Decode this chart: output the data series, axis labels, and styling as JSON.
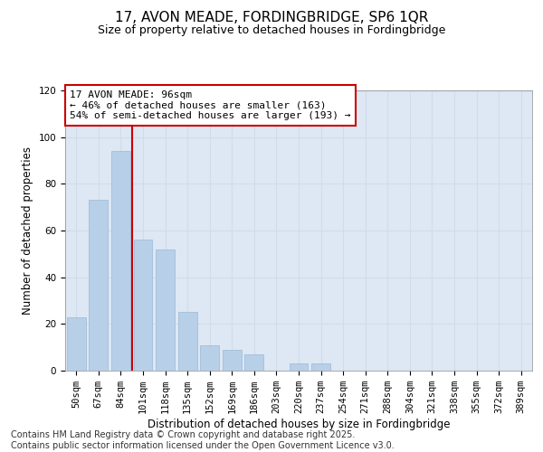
{
  "title": "17, AVON MEADE, FORDINGBRIDGE, SP6 1QR",
  "subtitle": "Size of property relative to detached houses in Fordingbridge",
  "xlabel": "Distribution of detached houses by size in Fordingbridge",
  "ylabel": "Number of detached properties",
  "categories": [
    "50sqm",
    "67sqm",
    "84sqm",
    "101sqm",
    "118sqm",
    "135sqm",
    "152sqm",
    "169sqm",
    "186sqm",
    "203sqm",
    "220sqm",
    "237sqm",
    "254sqm",
    "271sqm",
    "288sqm",
    "304sqm",
    "321sqm",
    "338sqm",
    "355sqm",
    "372sqm",
    "389sqm"
  ],
  "values": [
    23,
    73,
    94,
    56,
    52,
    25,
    11,
    9,
    7,
    0,
    3,
    3,
    0,
    0,
    0,
    0,
    0,
    0,
    0,
    0,
    0
  ],
  "bar_color": "#b8cfe8",
  "bar_edge_color": "#9ab8d8",
  "vline_x": 2.5,
  "vline_color": "#cc0000",
  "annotation_line1": "17 AVON MEADE: 96sqm",
  "annotation_line2": "← 46% of detached houses are smaller (163)",
  "annotation_line3": "54% of semi-detached houses are larger (193) →",
  "annotation_box_color": "#cc0000",
  "ylim": [
    0,
    120
  ],
  "yticks": [
    0,
    20,
    40,
    60,
    80,
    100,
    120
  ],
  "grid_color": "#d0dcea",
  "background_color": "#dde8f4",
  "footer_line1": "Contains HM Land Registry data © Crown copyright and database right 2025.",
  "footer_line2": "Contains public sector information licensed under the Open Government Licence v3.0.",
  "title_fontsize": 11,
  "subtitle_fontsize": 9,
  "axis_label_fontsize": 8.5,
  "tick_fontsize": 7.5,
  "annotation_fontsize": 8,
  "footer_fontsize": 7
}
